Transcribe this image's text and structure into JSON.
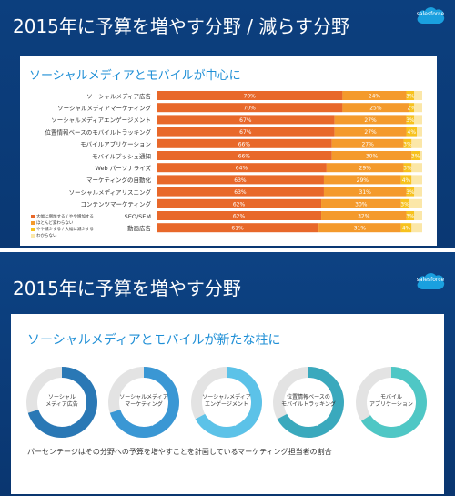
{
  "slides": [
    {
      "title": "2015年に予算を増やす分野 / 減らす分野",
      "logo_text": "salesforce",
      "card_title": "ソーシャルメディアとモバイルが中心に"
    },
    {
      "title": "2015年に予算を増やす分野",
      "logo_text": "salesforce",
      "card_title": "ソーシャルメディアとモバイルが新たな柱に",
      "footnote": "パーセンテージはその分野への予算を増やすことを計画しているマーケティング担当者の割合"
    }
  ],
  "colors": {
    "background": "#0b3b79",
    "accent_title": "#1f8fd6",
    "increase": "#e8682a",
    "same": "#f49a2c",
    "decrease": "#f7c21e",
    "unknown": "#fbe7a8"
  },
  "chart_data": [
    {
      "type": "bar",
      "stacked": true,
      "orientation": "horizontal",
      "categories": [
        "ソーシャルメディア広告",
        "ソーシャルメディアマーケティング",
        "ソーシャルメディアエンゲージメント",
        "位置情報ベースのモバイルトラッキング",
        "モバイルアプリケーション",
        "モバイルプッシュ通知",
        "Web パーソナライズ",
        "マーケティングの自動化",
        "ソーシャルメディアリスニング",
        "コンテンツマーケティング",
        "SEO/SEM",
        "動画広告"
      ],
      "series": [
        {
          "name": "大幅に増加する / やや増加する",
          "color": "#e8682a",
          "values": [
            70,
            70,
            67,
            67,
            66,
            66,
            64,
            63,
            63,
            62,
            62,
            61
          ]
        },
        {
          "name": "ほとんど変わらない",
          "color": "#f49a2c",
          "values": [
            24,
            25,
            27,
            27,
            27,
            30,
            29,
            29,
            31,
            30,
            32,
            31
          ]
        },
        {
          "name": "やや減少する / 大幅に減少する",
          "color": "#f7c21e",
          "values": [
            3,
            2,
            3,
            4,
            3,
            3,
            3,
            4,
            3,
            3,
            3,
            4
          ]
        },
        {
          "name": "わからない",
          "color": "#fbe7a8",
          "values": [
            3,
            3,
            3,
            2,
            4,
            1,
            4,
            4,
            3,
            5,
            3,
            4
          ]
        }
      ],
      "value_labels": [
        [
          "70%",
          "24%",
          "3%"
        ],
        [
          "70%",
          "25%",
          "2%"
        ],
        [
          "67%",
          "27%",
          "3%"
        ],
        [
          "67%",
          "27%",
          "4%"
        ],
        [
          "66%",
          "27%",
          "3%"
        ],
        [
          "66%",
          "30%",
          "3%"
        ],
        [
          "64%",
          "29%",
          "3%"
        ],
        [
          "63%",
          "29%",
          "4%"
        ],
        [
          "63%",
          "31%",
          "3%"
        ],
        [
          "62%",
          "30%",
          "3%"
        ],
        [
          "62%",
          "32%",
          "3%"
        ],
        [
          "61%",
          "31%",
          "4%"
        ]
      ],
      "legend_position": "bottom-left",
      "grid": false
    },
    {
      "type": "pie",
      "donut": true,
      "items": [
        {
          "label": "ソーシャル\nメディア広告",
          "value": 70,
          "display": "70%",
          "color": "#2a78b5"
        },
        {
          "label": "ソーシャルメディア\nマーケティング",
          "value": 70,
          "display": "70%",
          "color": "#3a97d4"
        },
        {
          "label": "ソーシャルメディア\nエンゲージメント",
          "value": 67,
          "display": "67%",
          "color": "#5cc2e8"
        },
        {
          "label": "位置情報ベースの\nモバイルトラッキング",
          "value": 67,
          "display": "67%",
          "color": "#3aa9bd"
        },
        {
          "label": "モバイル\nアプリケーション",
          "value": 66,
          "display": "66%",
          "color": "#4fc7c5"
        }
      ],
      "remainder_color": "#e3e3e3"
    }
  ]
}
